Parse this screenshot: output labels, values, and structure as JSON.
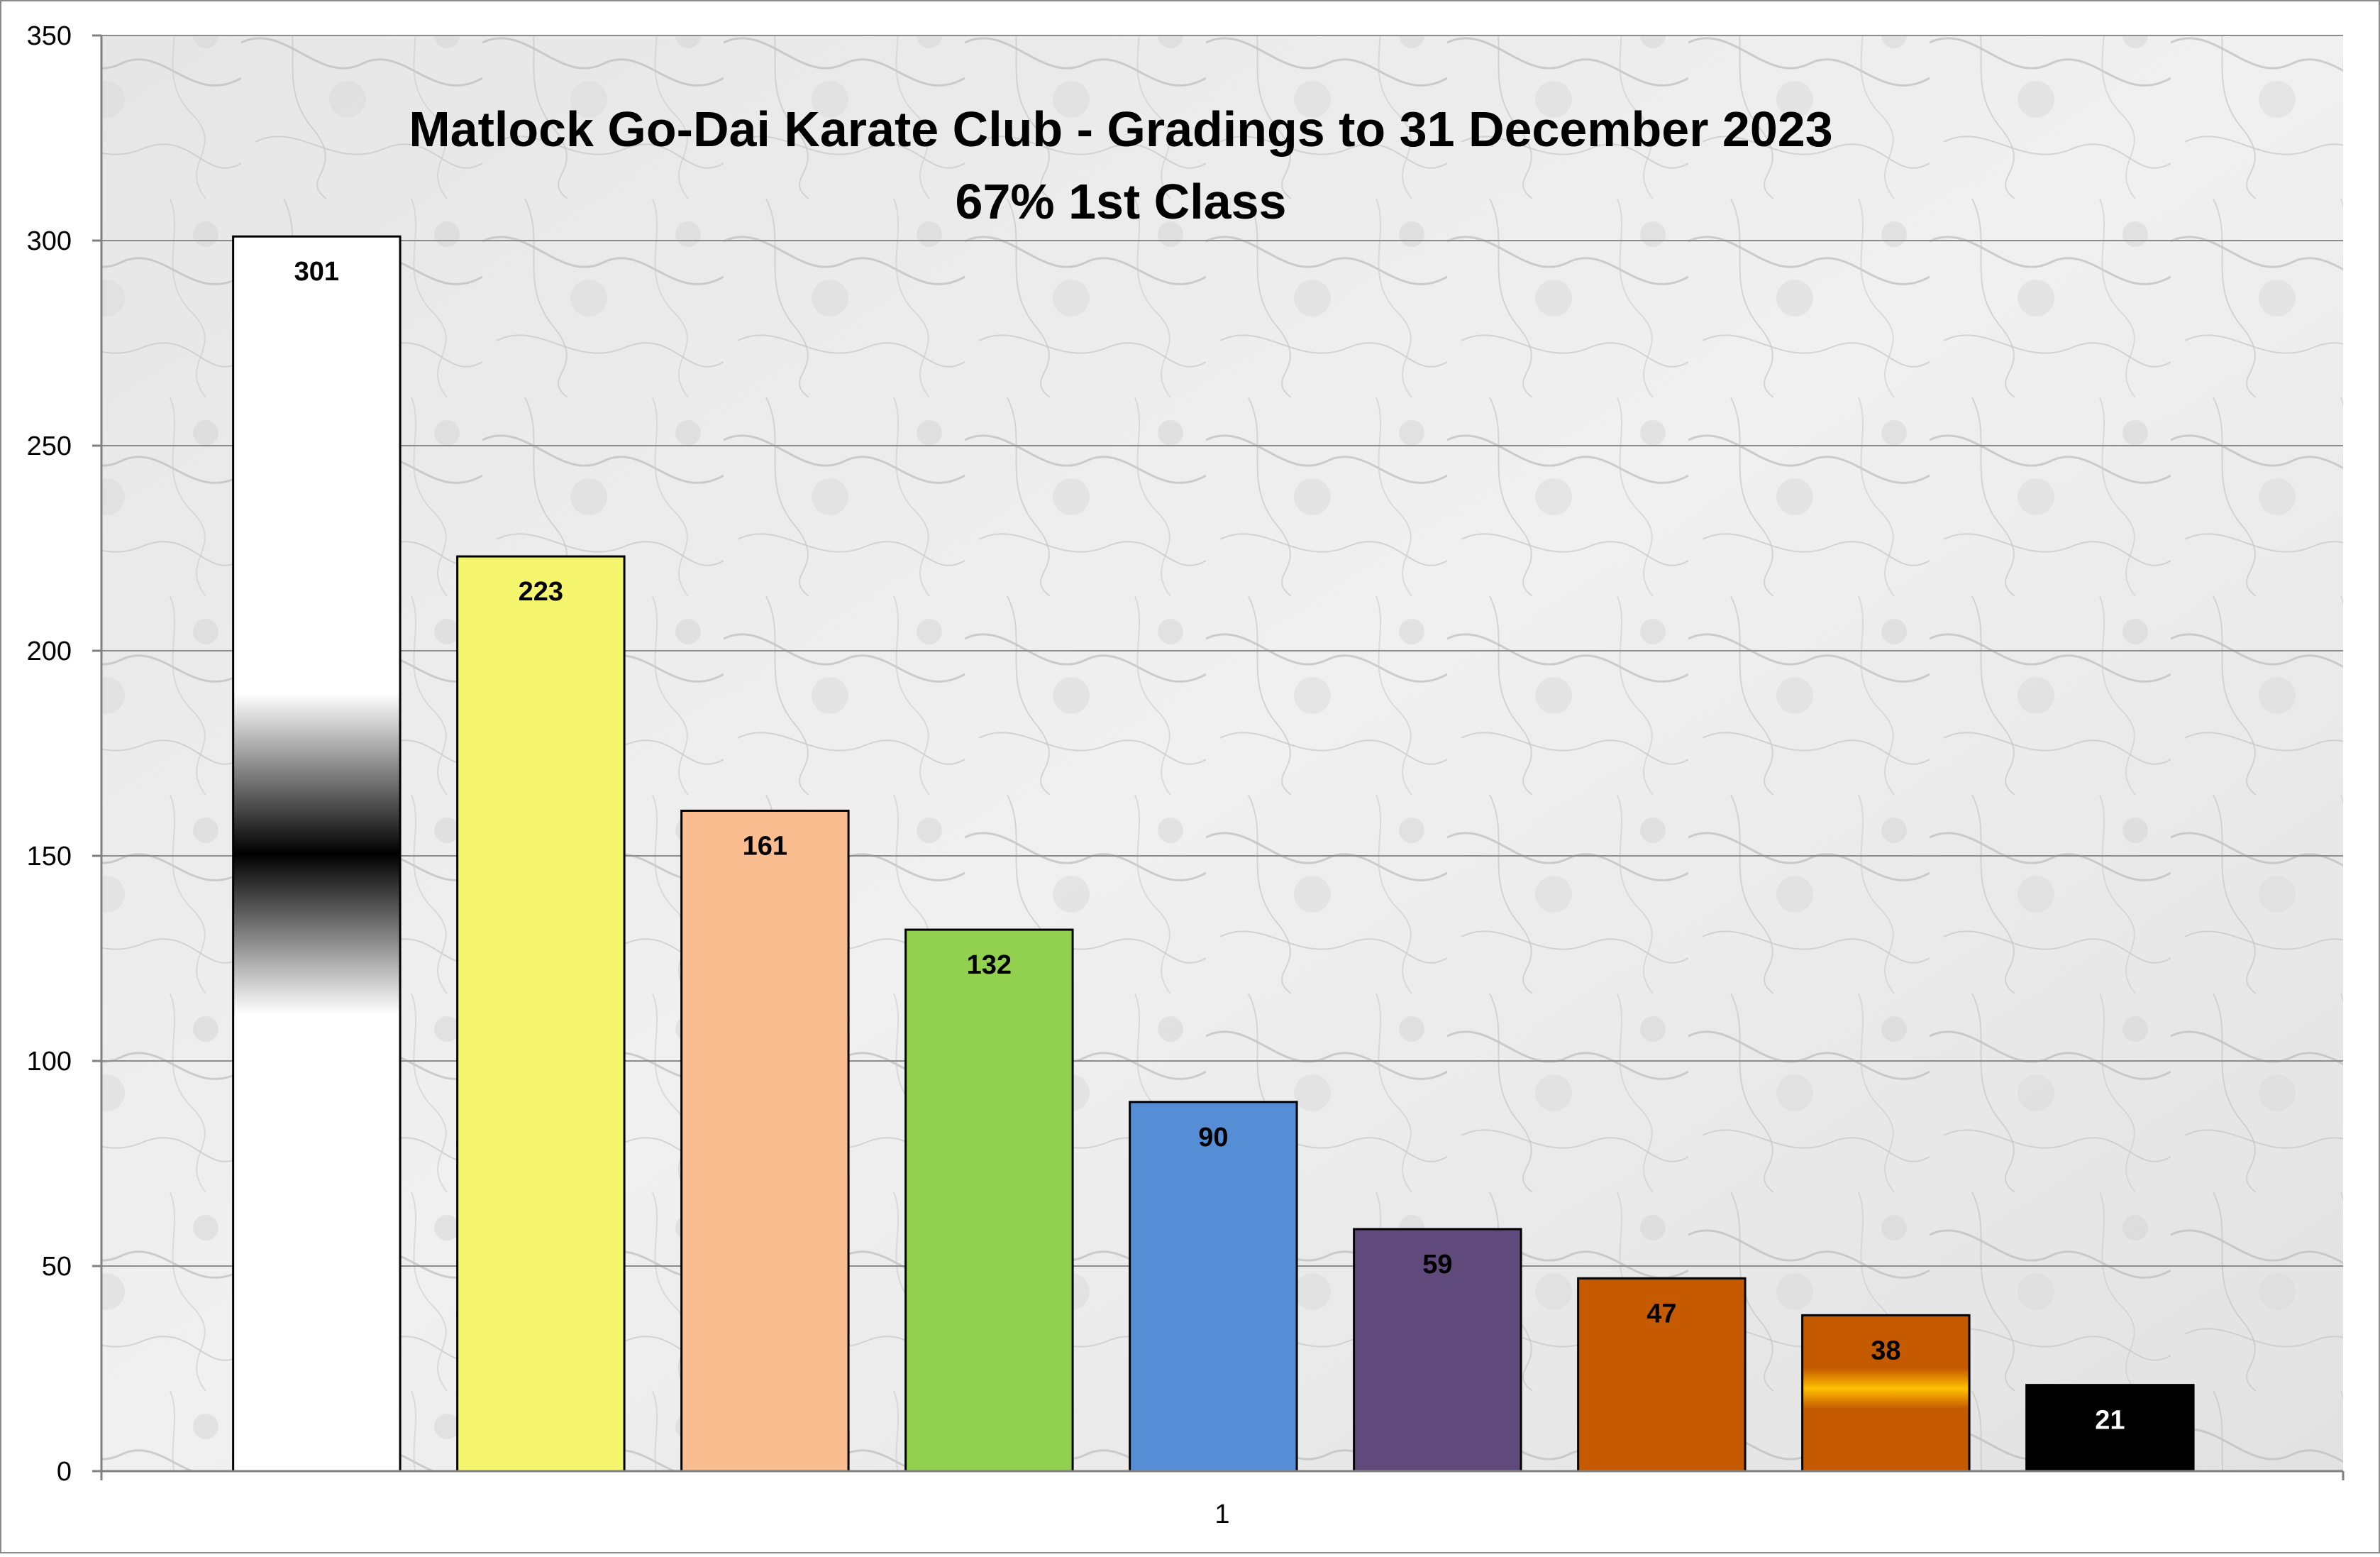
{
  "chart_data": {
    "type": "bar",
    "title": "Matlock Go-Dai Karate Club - Gradings to 31 December 2023",
    "subtitle": "67% 1st Class",
    "xlabel": "",
    "ylabel": "",
    "categories": [
      "1"
    ],
    "ylim": [
      0,
      350
    ],
    "yticks": [
      0,
      50,
      100,
      150,
      200,
      250,
      300,
      350
    ],
    "grid": true,
    "legend": "none",
    "series": [
      {
        "value": 301,
        "label": "301",
        "color": "#ffffff",
        "stripe": "#000000",
        "label_color": "#000000"
      },
      {
        "value": 223,
        "label": "223",
        "color": "#f5f56e",
        "label_color": "#000000"
      },
      {
        "value": 161,
        "label": "161",
        "color": "#f9bd8f",
        "label_color": "#000000"
      },
      {
        "value": 132,
        "label": "132",
        "color": "#92d050",
        "label_color": "#000000"
      },
      {
        "value": 90,
        "label": "90",
        "color": "#558ed5",
        "label_color": "#000000"
      },
      {
        "value": 59,
        "label": "59",
        "color": "#604a7b",
        "label_color": "#000000"
      },
      {
        "value": 47,
        "label": "47",
        "color": "#c55a00",
        "label_color": "#000000"
      },
      {
        "value": 38,
        "label": "38",
        "color": "#c55a00",
        "stripe": "#ffc000",
        "label_color": "#000000"
      },
      {
        "value": 21,
        "label": "21",
        "color": "#000000",
        "label_color": "#ffffff"
      }
    ]
  }
}
